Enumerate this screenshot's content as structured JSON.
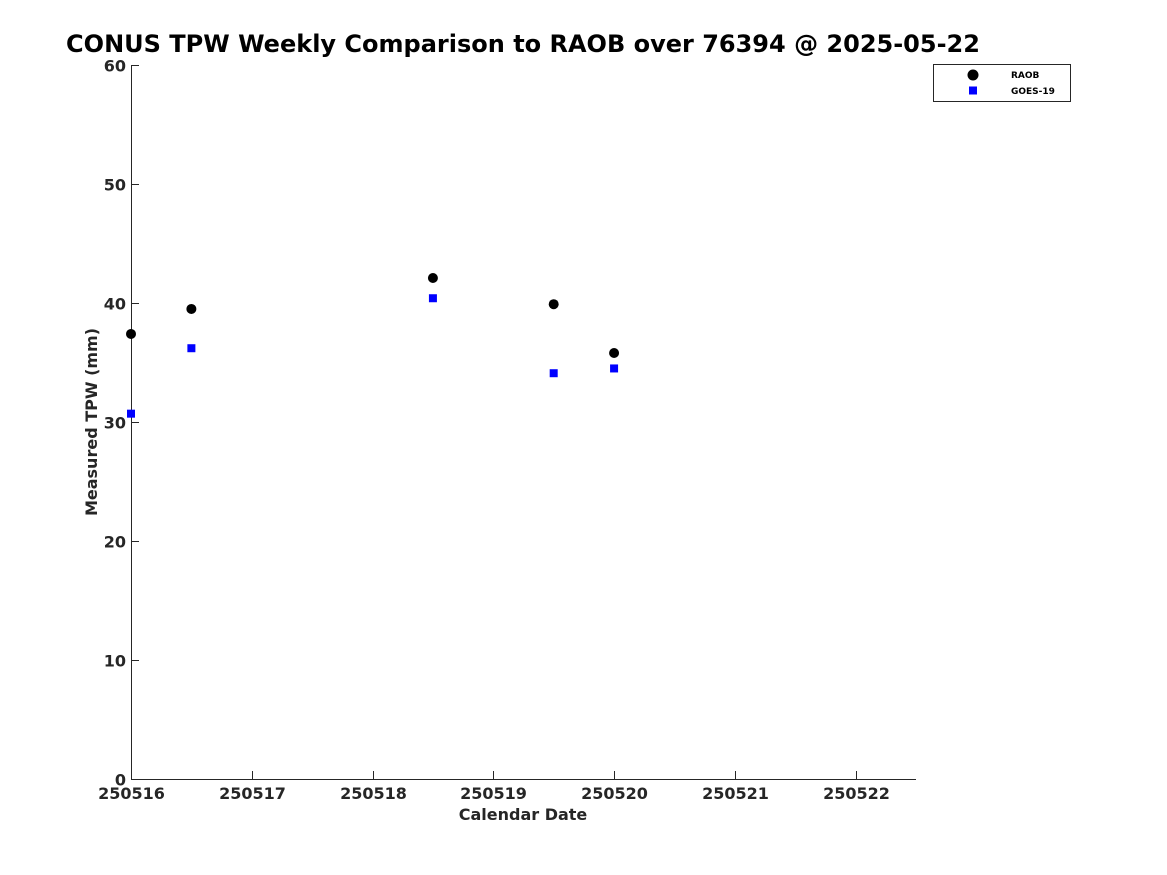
{
  "chart_data": {
    "type": "scatter",
    "title": "CONUS TPW Weekly Comparison to RAOB over 76394 @ 2025-05-22",
    "xlabel": "Calendar Date",
    "ylabel": "Measured TPW (mm)",
    "xlim": [
      250516,
      250522.5
    ],
    "ylim": [
      0,
      60
    ],
    "x_ticks": [
      250516,
      250517,
      250518,
      250519,
      250520,
      250521,
      250522
    ],
    "x_tick_labels": [
      "250516",
      "250517",
      "250518",
      "250519",
      "250520",
      "250521",
      "250522"
    ],
    "y_ticks": [
      0,
      10,
      20,
      30,
      40,
      50,
      60
    ],
    "y_tick_labels": [
      "0",
      "10",
      "20",
      "30",
      "40",
      "50",
      "60"
    ],
    "grid": false,
    "legend_position": "top-right",
    "series": [
      {
        "name": "RAOB",
        "marker": "circle",
        "color": "#000000",
        "x": [
          250516.0,
          250516.5,
          250518.5,
          250519.5,
          250520.0
        ],
        "y": [
          37.4,
          39.5,
          42.1,
          39.9,
          35.8
        ]
      },
      {
        "name": "GOES-19",
        "marker": "square",
        "color": "#0000ff",
        "x": [
          250516.0,
          250516.5,
          250518.5,
          250519.5,
          250520.0
        ],
        "y": [
          30.7,
          36.2,
          40.4,
          34.1,
          34.5
        ]
      }
    ]
  }
}
